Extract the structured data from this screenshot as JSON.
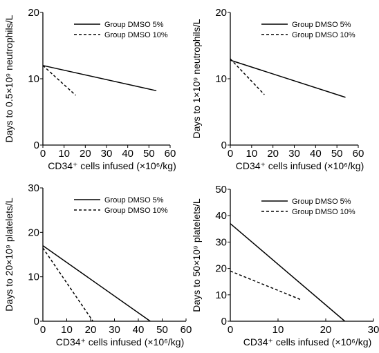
{
  "colors": {
    "line": "#000000",
    "background": "#ffffff"
  },
  "chart_data": [
    {
      "type": "line",
      "xlabel": "CD34⁺ cells infused (×10⁶/kg)",
      "ylabel": "Days to 0.5×10⁹ neutrophils/L",
      "xlim": [
        0,
        60
      ],
      "ylim": [
        0,
        20
      ],
      "xticks": [
        "0",
        "10",
        "20",
        "30",
        "40",
        "50",
        "60"
      ],
      "yticks": [
        "0",
        "10",
        "20"
      ],
      "legend_position": "top-right",
      "grid": false,
      "series": [
        {
          "name": "Group DMSO 5%",
          "style": "solid",
          "x": [
            0,
            53.5
          ],
          "y": [
            12,
            8.2
          ]
        },
        {
          "name": "Group DMSO 10%",
          "style": "dashed",
          "x": [
            0,
            15.5
          ],
          "y": [
            12,
            7.5
          ]
        }
      ]
    },
    {
      "type": "line",
      "xlabel": "CD34⁺ cells infused (×10⁶/kg)",
      "ylabel": "Days to 1×10⁹ neutrophils/L",
      "xlim": [
        0,
        60
      ],
      "ylim": [
        0,
        20
      ],
      "xticks": [
        "0",
        "10",
        "20",
        "30",
        "40",
        "50",
        "60"
      ],
      "yticks": [
        "0",
        "10",
        "20"
      ],
      "legend_position": "top-right",
      "grid": false,
      "series": [
        {
          "name": "Group DMSO 5%",
          "style": "solid",
          "x": [
            0,
            54
          ],
          "y": [
            12.8,
            7.2
          ]
        },
        {
          "name": "Group DMSO 10%",
          "style": "dashed",
          "x": [
            0,
            16
          ],
          "y": [
            13,
            7.6
          ]
        }
      ]
    },
    {
      "type": "line",
      "xlabel": "CD34⁺ cells infused (×10⁶/kg)",
      "ylabel": "Days to 20×10⁹ platelets/L",
      "xlim": [
        0,
        60
      ],
      "ylim": [
        0,
        30
      ],
      "xticks": [
        "0",
        "10",
        "20",
        "30",
        "40",
        "50",
        "60"
      ],
      "yticks": [
        "0",
        "10",
        "20",
        "30"
      ],
      "legend_position": "top-right",
      "grid": false,
      "series": [
        {
          "name": "Group DMSO 5%",
          "style": "solid",
          "x": [
            0,
            45
          ],
          "y": [
            17,
            0
          ]
        },
        {
          "name": "Group DMSO 10%",
          "style": "dashed",
          "x": [
            0,
            21
          ],
          "y": [
            16.5,
            0
          ]
        }
      ]
    },
    {
      "type": "line",
      "xlabel": "CD34⁺ cells infused (×10⁶/kg)",
      "ylabel": "Days to 50×10⁹ platelets/L",
      "xlim": [
        0,
        30
      ],
      "ylim": [
        0,
        50
      ],
      "xticks": [
        "0",
        "10",
        "20",
        "30"
      ],
      "yticks": [
        "0",
        "10",
        "20",
        "30",
        "40",
        "50"
      ],
      "legend_position": "top-right",
      "grid": false,
      "series": [
        {
          "name": "Group DMSO 5%",
          "style": "solid",
          "x": [
            0,
            24
          ],
          "y": [
            37,
            0
          ]
        },
        {
          "name": "Group DMSO 10%",
          "style": "dashed",
          "x": [
            0,
            15
          ],
          "y": [
            19,
            8
          ]
        }
      ]
    }
  ]
}
